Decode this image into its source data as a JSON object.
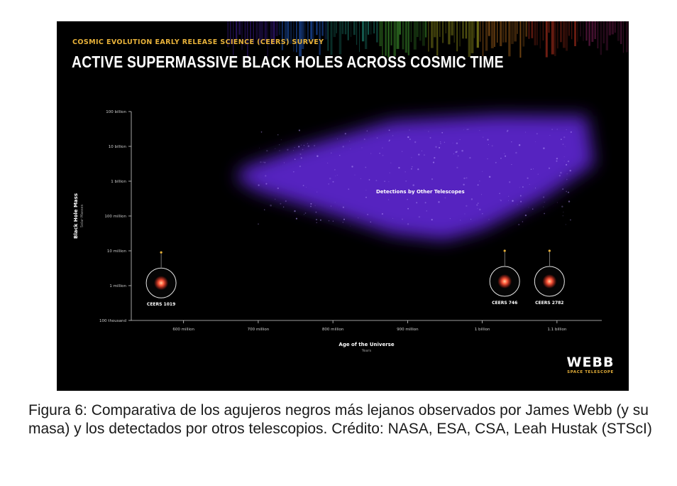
{
  "figure": {
    "survey_label": "COSMIC EVOLUTION EARLY RELEASE SCIENCE (CEERS) SURVEY",
    "title": "ACTIVE SUPERMASSIVE BLACK HOLES ACROSS COSMIC TIME",
    "logo": {
      "word": "WEBB",
      "sub": "SPACE TELESCOPE"
    },
    "colors": {
      "background": "#000000",
      "survey_label": "#e8b23a",
      "region": "#6a2cf0",
      "source": "#ff5a3c"
    }
  },
  "chart_data": {
    "type": "scatter",
    "title": "ACTIVE SUPERMASSIVE BLACK HOLES ACROSS COSMIC TIME",
    "xlabel": "Age of the Universe",
    "xunit": "Years",
    "ylabel": "Black Hole Mass",
    "yunit": "Solar Masses",
    "yscale": "log",
    "xlim": [
      530000000,
      1160000000
    ],
    "ylim": [
      100000,
      100000000000
    ],
    "x_ticks": [
      {
        "value": 600000000,
        "label": "600 million"
      },
      {
        "value": 700000000,
        "label": "700 million"
      },
      {
        "value": 800000000,
        "label": "800 million"
      },
      {
        "value": 900000000,
        "label": "900 million"
      },
      {
        "value": 1000000000,
        "label": "1 billion"
      },
      {
        "value": 1100000000,
        "label": "1.1 billion"
      }
    ],
    "y_ticks": [
      {
        "value": 100000000000,
        "label": "100 billion"
      },
      {
        "value": 10000000000,
        "label": "10 billion"
      },
      {
        "value": 1000000000,
        "label": "1 billion"
      },
      {
        "value": 100000000,
        "label": "100 million"
      },
      {
        "value": 10000000,
        "label": "10 million"
      },
      {
        "value": 1000000,
        "label": "1 million"
      },
      {
        "value": 100000,
        "label": "100 thousand"
      }
    ],
    "region": {
      "label": "Detections by Other Telescopes",
      "outline": [
        {
          "x": 680000000,
          "y": 2500000000
        },
        {
          "x": 760000000,
          "y": 10000000000
        },
        {
          "x": 880000000,
          "y": 55000000000
        },
        {
          "x": 1020000000,
          "y": 80000000000
        },
        {
          "x": 1140000000,
          "y": 75000000000
        },
        {
          "x": 1150000000,
          "y": 3000000000
        },
        {
          "x": 1080000000,
          "y": 300000000
        },
        {
          "x": 1000000000,
          "y": 40000000
        },
        {
          "x": 950000000,
          "y": 20000000
        },
        {
          "x": 880000000,
          "y": 30000000
        },
        {
          "x": 780000000,
          "y": 150000000
        },
        {
          "x": 700000000,
          "y": 500000000
        },
        {
          "x": 670000000,
          "y": 1200000000
        }
      ]
    },
    "points": [
      {
        "name": "CEERS 1019",
        "x": 570000000,
        "y": 9000000
      },
      {
        "name": "CEERS 746",
        "x": 1030000000,
        "y": 10000000
      },
      {
        "name": "CEERS 2782",
        "x": 1090000000,
        "y": 10000000
      }
    ],
    "grid": false,
    "legend": "none"
  },
  "caption": "Figura 6: Comparativa de los agujeros negros más lejanos observados por James Webb (y su masa) y los detectados por otros telescopios. Crédito: NASA, ESA, CSA, Leah Hustak (STScI)"
}
